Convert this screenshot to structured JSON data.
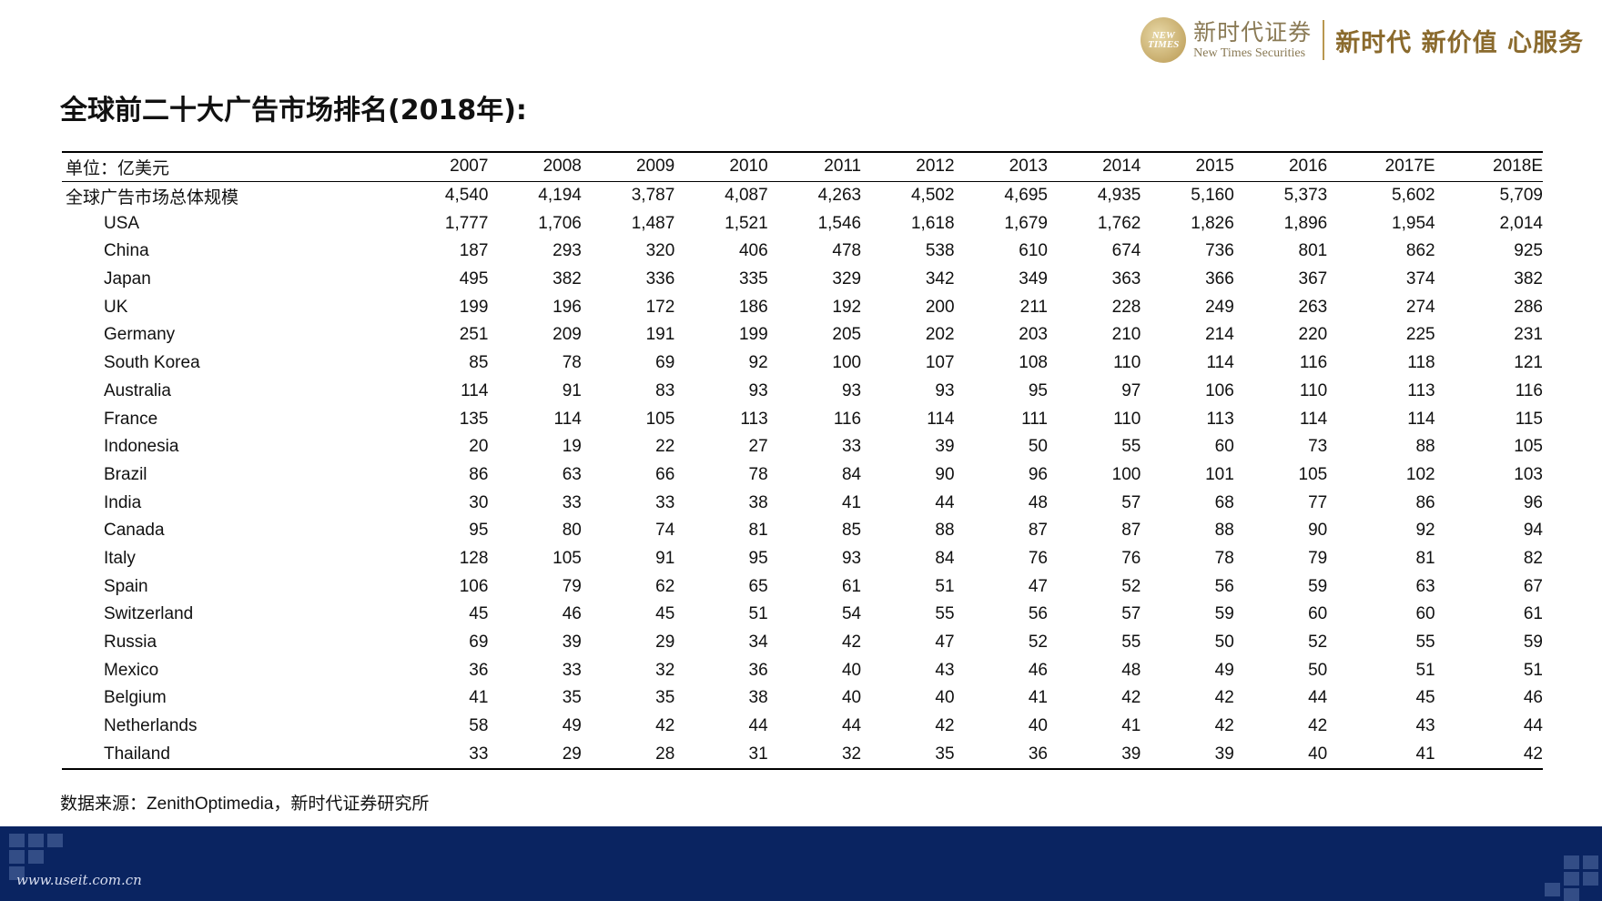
{
  "header": {
    "logo_mark_line1": "NEW",
    "logo_mark_line2": "TIMES",
    "company_cn": "新时代证券",
    "company_en": "New Times Securities",
    "slogan": "新时代 新价值 心服务"
  },
  "page_title": "全球前二十大广告市场排名(2018年):",
  "table": {
    "unit_label": "单位：亿美元",
    "years": [
      "2007",
      "2008",
      "2009",
      "2010",
      "2011",
      "2012",
      "2013",
      "2014",
      "2015",
      "2016",
      "2017E",
      "2018E"
    ],
    "total_row": {
      "label": "全球广告市场总体规模",
      "values": [
        "4,540",
        "4,194",
        "3,787",
        "4,087",
        "4,263",
        "4,502",
        "4,695",
        "4,935",
        "5,160",
        "5,373",
        "5,602",
        "5,709"
      ]
    },
    "rows": [
      {
        "country": "USA",
        "values": [
          "1,777",
          "1,706",
          "1,487",
          "1,521",
          "1,546",
          "1,618",
          "1,679",
          "1,762",
          "1,826",
          "1,896",
          "1,954",
          "2,014"
        ]
      },
      {
        "country": "China",
        "values": [
          "187",
          "293",
          "320",
          "406",
          "478",
          "538",
          "610",
          "674",
          "736",
          "801",
          "862",
          "925"
        ]
      },
      {
        "country": "Japan",
        "values": [
          "495",
          "382",
          "336",
          "335",
          "329",
          "342",
          "349",
          "363",
          "366",
          "367",
          "374",
          "382"
        ]
      },
      {
        "country": "UK",
        "values": [
          "199",
          "196",
          "172",
          "186",
          "192",
          "200",
          "211",
          "228",
          "249",
          "263",
          "274",
          "286"
        ]
      },
      {
        "country": "Germany",
        "values": [
          "251",
          "209",
          "191",
          "199",
          "205",
          "202",
          "203",
          "210",
          "214",
          "220",
          "225",
          "231"
        ]
      },
      {
        "country": "South Korea",
        "values": [
          "85",
          "78",
          "69",
          "92",
          "100",
          "107",
          "108",
          "110",
          "114",
          "116",
          "118",
          "121"
        ]
      },
      {
        "country": "Australia",
        "values": [
          "114",
          "91",
          "83",
          "93",
          "93",
          "93",
          "95",
          "97",
          "106",
          "110",
          "113",
          "116"
        ]
      },
      {
        "country": "France",
        "values": [
          "135",
          "114",
          "105",
          "113",
          "116",
          "114",
          "111",
          "110",
          "113",
          "114",
          "114",
          "115"
        ]
      },
      {
        "country": "Indonesia",
        "values": [
          "20",
          "19",
          "22",
          "27",
          "33",
          "39",
          "50",
          "55",
          "60",
          "73",
          "88",
          "105"
        ]
      },
      {
        "country": "Brazil",
        "values": [
          "86",
          "63",
          "66",
          "78",
          "84",
          "90",
          "96",
          "100",
          "101",
          "105",
          "102",
          "103"
        ]
      },
      {
        "country": "India",
        "values": [
          "30",
          "33",
          "33",
          "38",
          "41",
          "44",
          "48",
          "57",
          "68",
          "77",
          "86",
          "96"
        ]
      },
      {
        "country": "Canada",
        "values": [
          "95",
          "80",
          "74",
          "81",
          "85",
          "88",
          "87",
          "87",
          "88",
          "90",
          "92",
          "94"
        ]
      },
      {
        "country": "Italy",
        "values": [
          "128",
          "105",
          "91",
          "95",
          "93",
          "84",
          "76",
          "76",
          "78",
          "79",
          "81",
          "82"
        ]
      },
      {
        "country": "Spain",
        "values": [
          "106",
          "79",
          "62",
          "65",
          "61",
          "51",
          "47",
          "52",
          "56",
          "59",
          "63",
          "67"
        ]
      },
      {
        "country": "Switzerland",
        "values": [
          "45",
          "46",
          "45",
          "51",
          "54",
          "55",
          "56",
          "57",
          "59",
          "60",
          "60",
          "61"
        ]
      },
      {
        "country": "Russia",
        "values": [
          "69",
          "39",
          "29",
          "34",
          "42",
          "47",
          "52",
          "55",
          "50",
          "52",
          "55",
          "59"
        ]
      },
      {
        "country": "Mexico",
        "values": [
          "36",
          "33",
          "32",
          "36",
          "40",
          "43",
          "46",
          "48",
          "49",
          "50",
          "51",
          "51"
        ]
      },
      {
        "country": "Belgium",
        "values": [
          "41",
          "35",
          "35",
          "38",
          "40",
          "40",
          "41",
          "42",
          "42",
          "44",
          "45",
          "46"
        ]
      },
      {
        "country": "Netherlands",
        "values": [
          "58",
          "49",
          "42",
          "44",
          "44",
          "42",
          "40",
          "41",
          "42",
          "42",
          "43",
          "44"
        ]
      },
      {
        "country": "Thailand",
        "values": [
          "33",
          "29",
          "28",
          "31",
          "32",
          "35",
          "36",
          "39",
          "39",
          "40",
          "41",
          "42"
        ]
      }
    ]
  },
  "source": {
    "prefix": "数据来源：",
    "english": "ZenithOptimedia",
    "suffix": "，新时代证券研究所"
  },
  "footer": {
    "url": "www.useit.com.cn",
    "bar_color": "#0a2461"
  },
  "colors": {
    "brand_gold": "#8a6a2d",
    "footer_navy": "#0a2461"
  }
}
